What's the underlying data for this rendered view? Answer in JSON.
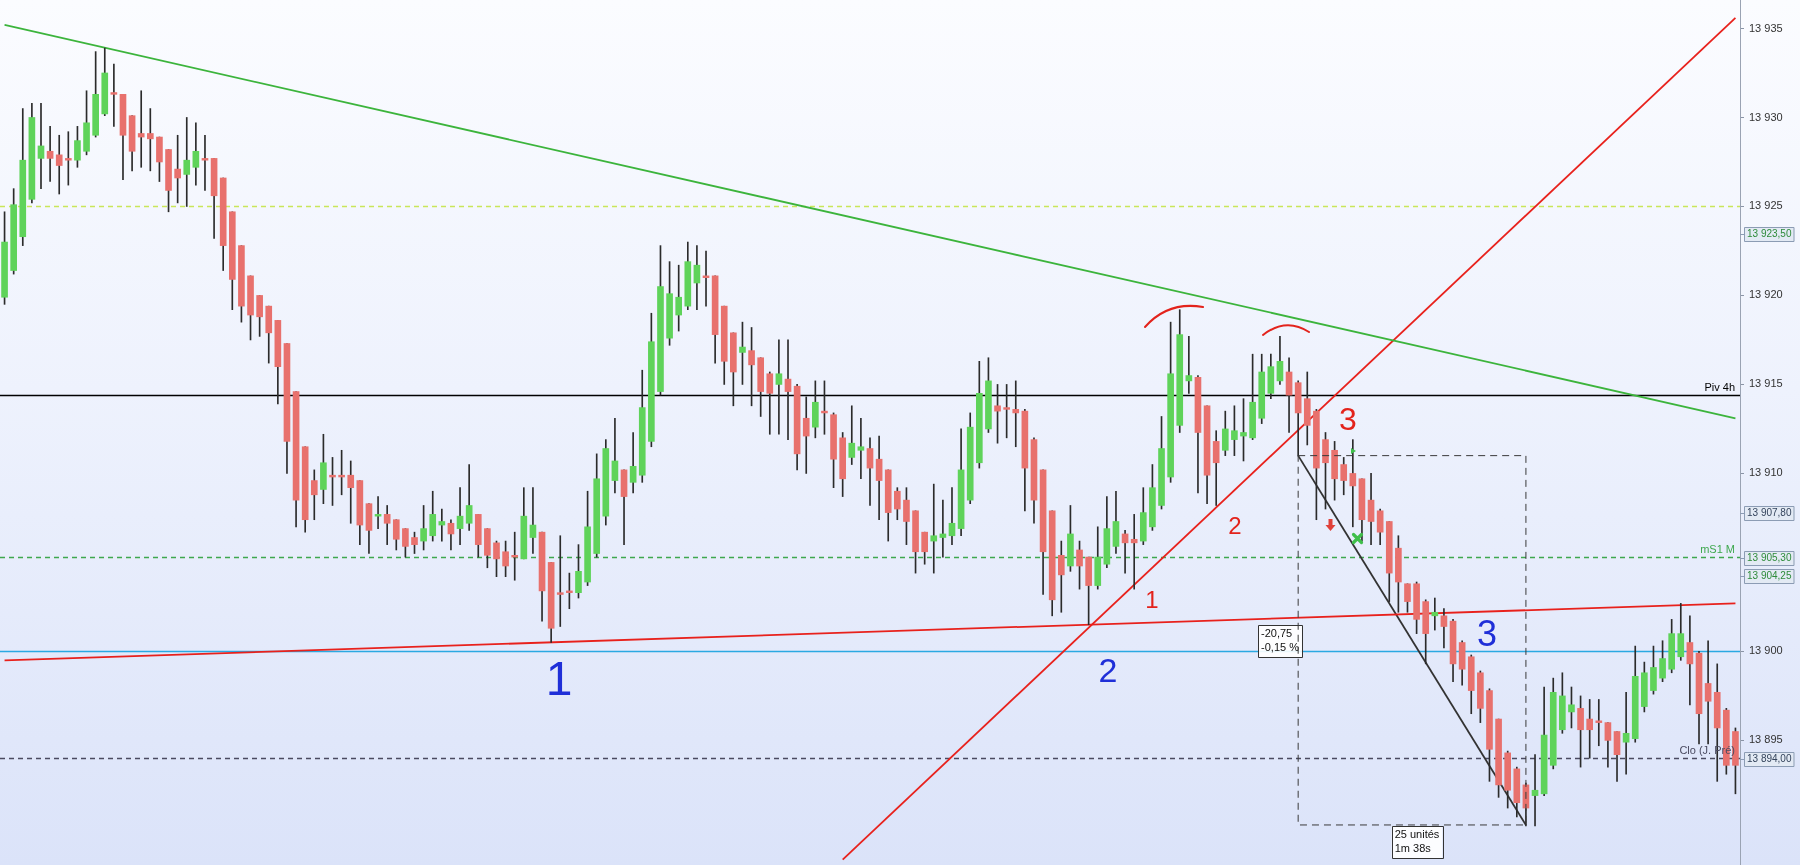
{
  "chart_data": {
    "type": "candlestick",
    "categories": [
      null,
      null,
      null,
      null,
      null,
      null,
      null,
      null,
      null,
      null,
      null,
      null,
      null,
      null,
      null,
      null,
      null,
      null,
      null,
      null,
      null,
      null,
      null,
      null,
      null,
      null,
      null,
      null,
      null,
      null,
      null,
      null,
      null,
      null,
      null,
      null,
      null,
      null,
      null,
      null,
      null,
      null,
      null,
      null,
      null,
      null,
      null,
      null,
      null,
      null,
      null,
      null,
      null,
      null,
      null,
      null,
      null,
      null,
      null,
      null,
      null,
      null,
      null,
      null,
      null,
      null,
      null,
      null,
      null,
      null,
      null,
      null,
      null,
      null,
      null,
      null,
      null,
      null,
      null,
      null,
      null,
      null,
      null,
      null,
      null,
      null,
      null,
      null,
      null,
      null,
      null,
      null,
      null,
      null,
      null,
      null,
      null,
      null,
      null,
      null,
      null,
      null,
      null,
      null,
      null,
      null,
      null,
      null,
      null,
      null,
      null,
      null,
      null,
      null,
      null,
      null,
      null,
      null,
      null,
      null,
      null,
      null,
      null,
      null,
      null,
      null,
      null,
      null,
      null,
      null,
      null,
      null,
      null,
      null,
      null,
      null,
      null,
      null,
      null,
      null,
      null,
      null,
      null,
      null,
      null,
      null,
      null,
      null,
      null,
      null,
      null,
      null,
      null,
      null,
      null,
      null,
      null,
      null,
      null,
      null,
      null,
      null,
      null,
      null,
      null,
      null,
      null,
      null,
      null,
      null,
      null,
      null,
      null,
      null,
      null,
      null,
      null,
      null,
      null,
      null,
      null,
      null,
      null,
      null,
      null,
      null,
      null,
      null,
      null,
      null,
      null
    ],
    "ohlc": [
      [
        13919.9,
        13924.7,
        13919.5,
        13923.0
      ],
      [
        13921.4,
        13926.0,
        13921.2,
        13925.1
      ],
      [
        13923.3,
        13930.5,
        13922.8,
        13927.6
      ],
      [
        13925.4,
        13930.8,
        13925.2,
        13930.0
      ],
      [
        13927.7,
        13930.8,
        13926.0,
        13928.4
      ],
      [
        13928.1,
        13929.5,
        13926.4,
        13927.7
      ],
      [
        13927.9,
        13929.0,
        13925.7,
        13927.3
      ],
      [
        13927.7,
        13929.2,
        13926.2,
        13927.6
      ],
      [
        13927.6,
        13929.5,
        13927.2,
        13928.7
      ],
      [
        13928.1,
        13931.5,
        13927.9,
        13929.7
      ],
      [
        13929.0,
        13933.7,
        13928.9,
        13931.3
      ],
      [
        13930.2,
        13933.9,
        13930.1,
        13932.5
      ],
      [
        13931.4,
        13933.0,
        13929.5,
        13931.3
      ],
      [
        13931.3,
        13931.3,
        13926.5,
        13929.0
      ],
      [
        13930.1,
        13930.1,
        13927.0,
        13928.1
      ],
      [
        13929.1,
        13931.5,
        13927.2,
        13928.9
      ],
      [
        13929.1,
        13930.5,
        13927.0,
        13928.8
      ],
      [
        13928.9,
        13928.9,
        13926.4,
        13927.5
      ],
      [
        13928.2,
        13928.2,
        13924.7,
        13925.9
      ],
      [
        13927.1,
        13929.0,
        13925.2,
        13926.6
      ],
      [
        13926.8,
        13930.0,
        13925.0,
        13927.6
      ],
      [
        13927.2,
        13929.7,
        13926.2,
        13928.1
      ],
      [
        13927.7,
        13929.0,
        13925.9,
        13927.6
      ],
      [
        13927.7,
        13927.7,
        13923.2,
        13925.6
      ],
      [
        13926.6,
        13926.6,
        13921.4,
        13922.8
      ],
      [
        13924.7,
        13924.7,
        13919.2,
        13920.9
      ],
      [
        13922.8,
        13922.8,
        13918.5,
        13919.4
      ],
      [
        13921.1,
        13921.1,
        13917.5,
        13918.9
      ],
      [
        13920.0,
        13920.0,
        13917.7,
        13918.8
      ],
      [
        13919.4,
        13919.4,
        13916.2,
        13917.9
      ],
      [
        13918.6,
        13918.6,
        13913.9,
        13916.0
      ],
      [
        13917.3,
        13917.3,
        13910.0,
        13911.8
      ],
      [
        13914.6,
        13914.6,
        13907.0,
        13908.5
      ],
      [
        13911.5,
        13911.5,
        13906.7,
        13907.4
      ],
      [
        13909.6,
        13910.2,
        13907.4,
        13908.8
      ],
      [
        13909.1,
        13912.2,
        13908.3,
        13910.6
      ],
      [
        13909.9,
        13910.9,
        13908.2,
        13909.8
      ],
      [
        13909.9,
        13911.3,
        13908.8,
        13909.8
      ],
      [
        13909.9,
        13910.7,
        13907.2,
        13909.2
      ],
      [
        13909.6,
        13909.6,
        13906.0,
        13907.1
      ],
      [
        13908.3,
        13908.3,
        13905.5,
        13906.8
      ],
      [
        13907.6,
        13908.7,
        13906.9,
        13907.7
      ],
      [
        13907.7,
        13908.2,
        13906.0,
        13907.2
      ],
      [
        13907.4,
        13907.4,
        13905.7,
        13906.3
      ],
      [
        13906.9,
        13906.9,
        13905.3,
        13905.9
      ],
      [
        13906.4,
        13906.7,
        13905.5,
        13906.0
      ],
      [
        13906.2,
        13908.2,
        13905.7,
        13906.9
      ],
      [
        13906.5,
        13909.0,
        13906.2,
        13907.7
      ],
      [
        13907.1,
        13908.0,
        13906.2,
        13907.3
      ],
      [
        13907.2,
        13907.4,
        13905.7,
        13906.6
      ],
      [
        13906.9,
        13909.2,
        13906.0,
        13907.6
      ],
      [
        13907.2,
        13910.5,
        13906.8,
        13908.2
      ],
      [
        13907.7,
        13907.7,
        13905.3,
        13906.0
      ],
      [
        13906.9,
        13906.9,
        13904.7,
        13905.4
      ],
      [
        13906.1,
        13906.2,
        13904.2,
        13905.2
      ],
      [
        13905.6,
        13906.2,
        13904.2,
        13904.8
      ],
      [
        13905.4,
        13906.7,
        13904.0,
        13905.3
      ],
      [
        13905.2,
        13909.2,
        13905.2,
        13907.6
      ],
      [
        13906.4,
        13909.2,
        13905.5,
        13907.1
      ],
      [
        13906.7,
        13906.7,
        13901.7,
        13903.4
      ],
      [
        13905.0,
        13905.0,
        13900.5,
        13901.3
      ],
      [
        13903.3,
        13906.5,
        13901.4,
        13903.2
      ],
      [
        13903.4,
        13904.4,
        13902.4,
        13903.3
      ],
      [
        13903.3,
        13906.0,
        13903.0,
        13904.5
      ],
      [
        13903.9,
        13909.0,
        13903.7,
        13907.0
      ],
      [
        13905.5,
        13911.1,
        13905.3,
        13909.7
      ],
      [
        13907.6,
        13911.9,
        13907.1,
        13911.4
      ],
      [
        13909.6,
        13913.1,
        13908.9,
        13910.7
      ],
      [
        13910.2,
        13910.2,
        13906.0,
        13908.7
      ],
      [
        13909.5,
        13912.3,
        13908.9,
        13910.4
      ],
      [
        13909.9,
        13915.8,
        13909.5,
        13913.7
      ],
      [
        13911.8,
        13919.0,
        13911.5,
        13917.4
      ],
      [
        13914.6,
        13922.8,
        13914.4,
        13920.5
      ],
      [
        13917.6,
        13921.9,
        13917.2,
        13920.1
      ],
      [
        13918.9,
        13921.7,
        13918.0,
        13919.9
      ],
      [
        13919.4,
        13923.0,
        13919.2,
        13921.9
      ],
      [
        13920.7,
        13922.8,
        13919.2,
        13921.7
      ],
      [
        13921.1,
        13922.5,
        13919.4,
        13921.0
      ],
      [
        13921.1,
        13921.1,
        13916.2,
        13917.8
      ],
      [
        13919.4,
        13919.4,
        13915.0,
        13916.3
      ],
      [
        13917.9,
        13917.9,
        13913.8,
        13915.7
      ],
      [
        13916.8,
        13918.5,
        13915.0,
        13917.1
      ],
      [
        13916.9,
        13918.2,
        13913.8,
        13916.1
      ],
      [
        13916.5,
        13916.5,
        13913.2,
        13914.6
      ],
      [
        13915.6,
        13915.7,
        13912.2,
        13914.5
      ],
      [
        13915.0,
        13917.5,
        13912.2,
        13915.6
      ],
      [
        13915.3,
        13917.5,
        13911.9,
        13914.6
      ],
      [
        13914.9,
        13915.0,
        13910.2,
        13911.1
      ],
      [
        13913.1,
        13914.3,
        13910.0,
        13912.1
      ],
      [
        13912.6,
        13915.2,
        13912.0,
        13914.0
      ],
      [
        13913.5,
        13915.2,
        13912.2,
        13913.4
      ],
      [
        13913.3,
        13913.4,
        13909.2,
        13910.8
      ],
      [
        13912.0,
        13912.3,
        13908.7,
        13909.7
      ],
      [
        13910.9,
        13913.8,
        13910.5,
        13911.7
      ],
      [
        13911.3,
        13913.1,
        13909.7,
        13911.5
      ],
      [
        13911.4,
        13912.0,
        13908.2,
        13910.3
      ],
      [
        13910.8,
        13912.1,
        13907.4,
        13909.6
      ],
      [
        13910.2,
        13910.2,
        13906.2,
        13907.8
      ],
      [
        13909.0,
        13909.2,
        13907.4,
        13908.0
      ],
      [
        13908.5,
        13909.2,
        13906.0,
        13907.3
      ],
      [
        13907.9,
        13907.9,
        13904.4,
        13905.6
      ],
      [
        13906.7,
        13906.7,
        13904.9,
        13905.6
      ],
      [
        13906.2,
        13909.4,
        13904.4,
        13906.5
      ],
      [
        13906.4,
        13908.5,
        13905.3,
        13906.6
      ],
      [
        13906.5,
        13909.2,
        13906.0,
        13907.2
      ],
      [
        13906.9,
        13912.5,
        13906.5,
        13910.2
      ],
      [
        13908.5,
        13913.4,
        13908.3,
        13912.6
      ],
      [
        13910.6,
        13916.3,
        13910.3,
        13914.5
      ],
      [
        13912.5,
        13916.5,
        13912.3,
        13915.2
      ],
      [
        13913.8,
        13915.0,
        13911.7,
        13913.5
      ],
      [
        13913.7,
        13915.0,
        13912.0,
        13913.6
      ],
      [
        13913.6,
        13915.2,
        13911.5,
        13913.4
      ],
      [
        13913.5,
        13913.6,
        13907.9,
        13910.3
      ],
      [
        13911.9,
        13912.0,
        13907.2,
        13908.5
      ],
      [
        13910.2,
        13910.2,
        13903.2,
        13905.6
      ],
      [
        13907.9,
        13907.9,
        13902.0,
        13902.9
      ],
      [
        13905.4,
        13906.2,
        13902.2,
        13904.3
      ],
      [
        13904.8,
        13908.2,
        13904.5,
        13906.6
      ],
      [
        13905.7,
        13906.2,
        13903.5,
        13904.8
      ],
      [
        13905.3,
        13905.3,
        13901.5,
        13903.7
      ],
      [
        13903.7,
        13907.0,
        13903.5,
        13905.3
      ],
      [
        13904.9,
        13908.7,
        13904.7,
        13906.9
      ],
      [
        13905.9,
        13909.0,
        13905.5,
        13907.3
      ],
      [
        13906.6,
        13906.8,
        13904.4,
        13906.1
      ],
      [
        13906.3,
        13907.7,
        13903.5,
        13906.1
      ],
      [
        13906.2,
        13909.2,
        13906.0,
        13907.8
      ],
      [
        13907.0,
        13910.5,
        13906.8,
        13909.2
      ],
      [
        13908.2,
        13913.2,
        13908.0,
        13911.4
      ],
      [
        13909.8,
        13918.5,
        13909.5,
        13915.6
      ],
      [
        13912.7,
        13919.2,
        13912.3,
        13917.8
      ],
      [
        13915.2,
        13917.7,
        13914.5,
        13915.5
      ],
      [
        13915.4,
        13915.5,
        13908.9,
        13912.3
      ],
      [
        13913.8,
        13913.8,
        13908.3,
        13909.9
      ],
      [
        13911.8,
        13912.4,
        13908.2,
        13910.6
      ],
      [
        13911.3,
        13913.5,
        13911.0,
        13912.5
      ],
      [
        13911.9,
        13913.8,
        13911.0,
        13912.4
      ],
      [
        13912.1,
        13914.2,
        13910.7,
        13912.3
      ],
      [
        13912.0,
        13916.7,
        13911.9,
        13914.0
      ],
      [
        13913.1,
        13916.7,
        13912.8,
        13915.7
      ],
      [
        13914.5,
        13916.7,
        13914.2,
        13916.0
      ],
      [
        13915.2,
        13917.7,
        13915.0,
        13916.3
      ],
      [
        13915.7,
        13916.5,
        13912.3,
        13914.4
      ],
      [
        13915.1,
        13915.2,
        13911.0,
        13913.4
      ],
      [
        13914.2,
        13915.7,
        13911.6,
        13912.7
      ],
      [
        13913.5,
        13913.6,
        13907.4,
        13910.3
      ],
      [
        13911.9,
        13912.3,
        13908.0,
        13910.6
      ],
      [
        13911.3,
        13911.8,
        13908.5,
        13909.7
      ],
      [
        13910.5,
        13910.9,
        13908.8,
        13909.6
      ],
      [
        13910.0,
        13911.9,
        13907.0,
        13909.3
      ],
      [
        13909.7,
        13909.7,
        13906.2,
        13907.4
      ],
      [
        13908.5,
        13910.0,
        13906.0,
        13907.3
      ],
      [
        13907.9,
        13908.0,
        13906.0,
        13906.7
      ],
      [
        13907.3,
        13907.3,
        13902.8,
        13904.4
      ],
      [
        13905.8,
        13906.5,
        13902.2,
        13903.9
      ],
      [
        13903.8,
        13903.8,
        13902.2,
        13902.8
      ],
      [
        13903.8,
        13903.9,
        13901.0,
        13901.8
      ],
      [
        13902.8,
        13902.9,
        13899.3,
        13901.0
      ],
      [
        13902.0,
        13903.0,
        13901.2,
        13902.2
      ],
      [
        13902.0,
        13902.4,
        13900.2,
        13901.4
      ],
      [
        13901.7,
        13901.8,
        13898.3,
        13899.3
      ],
      [
        13900.5,
        13900.6,
        13898.1,
        13899.0
      ],
      [
        13899.7,
        13899.8,
        13896.5,
        13897.8
      ],
      [
        13898.8,
        13898.9,
        13896.0,
        13896.8
      ],
      [
        13897.8,
        13897.9,
        13892.7,
        13894.5
      ],
      [
        13896.2,
        13896.2,
        13891.8,
        13892.5
      ],
      [
        13894.3,
        13894.4,
        13891.2,
        13892.2
      ],
      [
        13893.4,
        13893.5,
        13890.7,
        13891.5
      ],
      [
        13892.5,
        13892.6,
        13890.2,
        13891.2
      ],
      [
        13891.9,
        13894.2,
        13890.2,
        13892.2
      ],
      [
        13892.0,
        13898.0,
        13891.9,
        13895.3
      ],
      [
        13893.6,
        13898.5,
        13893.4,
        13897.7
      ],
      [
        13895.6,
        13898.8,
        13895.4,
        13897.5
      ],
      [
        13896.6,
        13898.0,
        13895.7,
        13897.0
      ],
      [
        13896.8,
        13897.5,
        13893.5,
        13895.6
      ],
      [
        13896.2,
        13897.3,
        13894.0,
        13895.6
      ],
      [
        13896.1,
        13897.3,
        13894.7,
        13896.0
      ],
      [
        13896.0,
        13896.0,
        13893.5,
        13895.0
      ],
      [
        13895.5,
        13895.5,
        13892.7,
        13894.2
      ],
      [
        13894.9,
        13897.7,
        13893.1,
        13895.4
      ],
      [
        13895.1,
        13900.3,
        13894.9,
        13898.6
      ],
      [
        13896.9,
        13899.4,
        13896.6,
        13898.8
      ],
      [
        13897.8,
        13900.3,
        13897.6,
        13899.1
      ],
      [
        13898.5,
        13900.6,
        13898.3,
        13899.6
      ],
      [
        13899.0,
        13901.8,
        13898.8,
        13901.0
      ],
      [
        13899.7,
        13902.7,
        13899.5,
        13901.0
      ],
      [
        13900.5,
        13902.0,
        13897.0,
        13899.3
      ],
      [
        13899.9,
        13900.0,
        13894.8,
        13896.5
      ],
      [
        13898.2,
        13900.6,
        13894.8,
        13897.2
      ],
      [
        13897.7,
        13899.3,
        13892.7,
        13895.7
      ],
      [
        13896.7,
        13896.8,
        13893.1,
        13893.6
      ],
      [
        13895.5,
        13895.7,
        13892.0,
        13893.6
      ]
    ],
    "colors": [
      "#5fd35a",
      "#5fd35a",
      "#5fd35a",
      "#5fd35a",
      "#5fd35a",
      "#e8716d",
      "#e8716d",
      "#e8716d",
      "#5fd35a",
      "#5fd35a",
      "#5fd35a",
      "#5fd35a",
      "#e8716d",
      "#e8716d",
      "#e8716d",
      "#e8716d",
      "#e8716d",
      "#e8716d",
      "#e8716d",
      "#e8716d",
      "#5fd35a",
      "#5fd35a",
      "#e8716d",
      "#e8716d",
      "#e8716d",
      "#e8716d",
      "#e8716d",
      "#e8716d",
      "#e8716d",
      "#e8716d",
      "#e8716d",
      "#e8716d",
      "#e8716d",
      "#e8716d",
      "#e8716d",
      "#5fd35a",
      "#e8716d",
      "#e8716d",
      "#e8716d",
      "#e8716d",
      "#e8716d",
      "#5fd35a",
      "#e8716d",
      "#e8716d",
      "#e8716d",
      "#e8716d",
      "#5fd35a",
      "#5fd35a",
      "#5fd35a",
      "#e8716d",
      "#5fd35a",
      "#5fd35a",
      "#e8716d",
      "#e8716d",
      "#e8716d",
      "#e8716d",
      "#e8716d",
      "#5fd35a",
      "#5fd35a",
      "#e8716d",
      "#e8716d",
      "#e8716d",
      "#e8716d",
      "#5fd35a",
      "#5fd35a",
      "#5fd35a",
      "#5fd35a",
      "#5fd35a",
      "#e8716d",
      "#5fd35a",
      "#5fd35a",
      "#5fd35a",
      "#5fd35a",
      "#5fd35a",
      "#5fd35a",
      "#5fd35a",
      "#5fd35a",
      "#e8716d",
      "#e8716d",
      "#e8716d",
      "#e8716d",
      "#5fd35a",
      "#e8716d",
      "#e8716d",
      "#e8716d",
      "#5fd35a",
      "#e8716d",
      "#e8716d",
      "#e8716d",
      "#5fd35a",
      "#e8716d",
      "#e8716d",
      "#e8716d",
      "#5fd35a",
      "#5fd35a",
      "#e8716d",
      "#e8716d",
      "#e8716d",
      "#e8716d",
      "#e8716d",
      "#e8716d",
      "#e8716d",
      "#5fd35a",
      "#5fd35a",
      "#5fd35a",
      "#5fd35a",
      "#5fd35a",
      "#5fd35a",
      "#5fd35a",
      "#e8716d",
      "#e8716d",
      "#e8716d",
      "#e8716d",
      "#e8716d",
      "#e8716d",
      "#e8716d",
      "#e8716d",
      "#5fd35a",
      "#e8716d",
      "#e8716d",
      "#5fd35a",
      "#5fd35a",
      "#5fd35a",
      "#e8716d",
      "#e8716d",
      "#5fd35a",
      "#5fd35a",
      "#5fd35a",
      "#5fd35a",
      "#5fd35a",
      "#5fd35a",
      "#e8716d",
      "#e8716d",
      "#e8716d",
      "#5fd35a",
      "#5fd35a",
      "#5fd35a",
      "#5fd35a",
      "#5fd35a",
      "#5fd35a",
      "#5fd35a",
      "#e8716d",
      "#e8716d",
      "#e8716d",
      "#e8716d",
      "#e8716d",
      "#e8716d",
      "#e8716d",
      "#e8716d",
      "#e8716d",
      "#e8716d",
      "#e8716d",
      "#e8716d",
      "#e8716d",
      "#e8716d",
      "#e8716d",
      "#e8716d",
      "#5fd35a",
      "#e8716d",
      "#e8716d",
      "#e8716d",
      "#e8716d",
      "#e8716d",
      "#e8716d",
      "#e8716d",
      "#e8716d",
      "#e8716d",
      "#e8716d",
      "#5fd35a",
      "#5fd35a",
      "#5fd35a",
      "#5fd35a",
      "#5fd35a",
      "#e8716d",
      "#e8716d",
      "#e8716d",
      "#e8716d",
      "#e8716d",
      "#5fd35a",
      "#5fd35a",
      "#5fd35a",
      "#5fd35a",
      "#5fd35a",
      "#5fd35a",
      "#5fd35a",
      "#e8716d",
      "#e8716d",
      "#e8716d",
      "#e8716d",
      "#e8716d",
      "#e8716d"
    ],
    "series": [
      {
        "type": "line",
        "color": "#3cb43c",
        "values": [
          13935.2,
          null,
          null,
          null,
          null,
          null,
          null,
          null,
          null,
          null,
          null,
          null,
          null,
          null,
          null,
          null,
          null,
          null,
          null,
          null,
          null,
          null,
          null,
          null,
          null,
          null,
          null,
          null,
          null,
          null,
          null,
          null,
          null,
          null,
          null,
          null,
          null,
          null,
          null,
          null,
          null,
          null,
          null,
          null,
          null,
          null,
          null,
          null,
          null,
          null,
          null,
          null,
          null,
          null,
          null,
          null,
          null,
          null,
          null,
          null,
          null,
          null,
          null,
          null,
          null,
          null,
          null,
          null,
          null,
          null,
          null,
          null,
          null,
          null,
          null,
          null,
          null,
          null,
          null,
          null,
          null,
          null,
          null,
          null,
          null,
          null,
          null,
          null,
          null,
          null,
          null,
          null,
          null,
          null,
          null,
          null,
          null,
          null,
          null,
          null,
          null,
          null,
          null,
          null,
          null,
          null,
          null,
          null,
          null,
          null,
          null,
          null,
          null,
          null,
          null,
          null,
          null,
          null,
          null,
          null,
          null,
          null,
          null,
          null,
          null,
          null,
          null,
          null,
          null,
          null,
          null,
          null,
          null,
          null,
          null,
          null,
          null,
          null,
          null,
          null,
          null,
          null,
          null,
          null,
          null,
          null,
          null,
          null,
          null,
          null,
          null,
          null,
          null,
          null,
          null,
          null,
          null,
          null,
          null,
          null,
          null,
          null,
          null,
          null,
          null,
          null,
          null,
          null,
          null,
          null,
          null,
          null,
          null,
          null,
          null,
          null,
          null,
          null,
          null,
          null,
          null,
          null,
          null,
          null,
          null,
          null,
          null,
          null,
          null,
          null,
          13913.1
        ]
      },
      {
        "type": "line",
        "color": "#e8211c",
        "values": [
          null,
          null,
          null,
          null,
          null,
          null,
          null,
          null,
          null,
          null,
          null,
          null,
          null,
          null,
          null,
          null,
          null,
          null,
          null,
          null,
          null,
          null,
          null,
          null,
          null,
          null,
          null,
          null,
          null,
          null,
          null,
          null,
          null,
          null,
          null,
          null,
          null,
          null,
          null,
          null,
          null,
          null,
          null,
          null,
          null,
          null,
          null,
          null,
          null,
          null,
          null,
          null,
          null,
          null,
          null,
          null,
          null,
          null,
          null,
          null,
          null,
          null,
          null,
          null,
          null,
          null,
          null,
          null,
          null,
          null,
          null,
          null,
          null,
          null,
          null,
          null,
          null,
          null,
          null,
          null,
          null,
          null,
          null,
          null,
          null,
          null,
          null,
          null,
          null,
          null,
          null,
          null,
          13888.3,
          null,
          null,
          null,
          null,
          null,
          null,
          null,
          null,
          null,
          null,
          null,
          null,
          null,
          null,
          null,
          null,
          null,
          null,
          null,
          null,
          null,
          null,
          null,
          null,
          null,
          null,
          null,
          null,
          null,
          null,
          null,
          null,
          null,
          null,
          null,
          null,
          null,
          null,
          null,
          null,
          null,
          null,
          null,
          null,
          null,
          null,
          null,
          null,
          null,
          null,
          null,
          null,
          null,
          null,
          null,
          null,
          null,
          null,
          null,
          null,
          null,
          null,
          null,
          null,
          null,
          null,
          null,
          null,
          null,
          null,
          null,
          null,
          null,
          null,
          null,
          null,
          null,
          null,
          null,
          null,
          null,
          null,
          null,
          null,
          null,
          null,
          null,
          null,
          null,
          null,
          null,
          null,
          null,
          null,
          null,
          null,
          null,
          13935.6
        ]
      },
      {
        "type": "line",
        "color": "#e8211c",
        "values": [
          13899.5,
          null,
          null,
          null,
          null,
          null,
          null,
          null,
          null,
          null,
          null,
          null,
          null,
          null,
          null,
          null,
          null,
          null,
          null,
          null,
          null,
          null,
          null,
          null,
          null,
          null,
          null,
          null,
          null,
          null,
          null,
          null,
          null,
          null,
          null,
          null,
          null,
          null,
          null,
          null,
          null,
          null,
          null,
          null,
          null,
          null,
          null,
          null,
          null,
          null,
          null,
          null,
          null,
          null,
          null,
          null,
          null,
          null,
          null,
          null,
          null,
          null,
          null,
          null,
          null,
          null,
          null,
          null,
          null,
          null,
          null,
          null,
          null,
          null,
          null,
          null,
          null,
          null,
          null,
          null,
          null,
          null,
          null,
          null,
          null,
          null,
          null,
          null,
          null,
          null,
          null,
          null,
          null,
          null,
          null,
          null,
          null,
          null,
          null,
          null,
          null,
          null,
          null,
          null,
          null,
          null,
          null,
          null,
          null,
          null,
          null,
          null,
          null,
          null,
          null,
          null,
          null,
          null,
          null,
          null,
          null,
          null,
          null,
          null,
          null,
          null,
          null,
          null,
          null,
          null,
          null,
          null,
          null,
          null,
          null,
          null,
          null,
          null,
          null,
          null,
          null,
          null,
          null,
          null,
          null,
          null,
          null,
          null,
          null,
          null,
          null,
          null,
          null,
          null,
          null,
          null,
          null,
          null,
          null,
          null,
          null,
          null,
          null,
          null,
          null,
          null,
          null,
          null,
          null,
          null,
          null,
          null,
          null,
          null,
          null,
          null,
          null,
          null,
          null,
          null,
          null,
          null,
          null,
          null,
          null,
          null,
          null,
          null,
          null,
          null,
          13902.7
        ]
      },
      {
        "type": "line",
        "color": "#333333",
        "values": [
          null,
          null,
          null,
          null,
          null,
          null,
          null,
          null,
          null,
          null,
          null,
          null,
          null,
          null,
          null,
          null,
          null,
          null,
          null,
          null,
          null,
          null,
          null,
          null,
          null,
          null,
          null,
          null,
          null,
          null,
          null,
          null,
          null,
          null,
          null,
          null,
          null,
          null,
          null,
          null,
          null,
          null,
          null,
          null,
          null,
          null,
          null,
          null,
          null,
          null,
          null,
          null,
          null,
          null,
          null,
          null,
          null,
          null,
          null,
          null,
          null,
          null,
          null,
          null,
          null,
          null,
          null,
          null,
          null,
          null,
          null,
          null,
          null,
          null,
          null,
          null,
          null,
          null,
          null,
          null,
          null,
          null,
          null,
          null,
          null,
          null,
          null,
          null,
          null,
          null,
          null,
          null,
          null,
          null,
          null,
          null,
          null,
          null,
          null,
          null,
          null,
          null,
          null,
          null,
          null,
          null,
          null,
          null,
          null,
          null,
          null,
          null,
          null,
          null,
          null,
          null,
          null,
          null,
          null,
          null,
          null,
          null,
          null,
          null,
          null,
          null,
          null,
          null,
          null,
          null,
          null,
          null,
          null,
          null,
          null,
          null,
          null,
          null,
          null,
          null,
          null,
          null,
          13911.0,
          null,
          null,
          null,
          null,
          null,
          null,
          null,
          null,
          null,
          null,
          null,
          null,
          null,
          null,
          null,
          null,
          null,
          null,
          null,
          null,
          null,
          null,
          null,
          null,
          13890.25,
          null,
          null,
          null,
          null,
          null,
          null,
          null,
          null,
          null,
          null,
          null,
          null,
          null,
          null,
          null,
          null,
          null,
          null,
          null,
          null,
          null,
          null,
          null
        ]
      }
    ],
    "ylim": [
      13888.0,
      13936.6
    ],
    "yticks": [
      {
        "value": 13895,
        "label": "13 895"
      },
      {
        "value": 13900,
        "label": "13 900"
      },
      {
        "value": 13910,
        "label": "13 910"
      },
      {
        "value": 13915,
        "label": "13 915"
      },
      {
        "value": 13920,
        "label": "13 920"
      },
      {
        "value": 13925,
        "label": "13 925"
      },
      {
        "value": 13930,
        "label": "13 930"
      },
      {
        "value": 13935,
        "label": "13 935"
      }
    ],
    "ref_lines": [
      {
        "axis": "y",
        "value": 13925,
        "color": "#c9e65a",
        "line_style": "dashed"
      },
      {
        "axis": "y",
        "value": 13914.4,
        "label": "Piv 4h",
        "color": "#000000"
      },
      {
        "axis": "y",
        "value": 13905.3,
        "label": "mS1 M",
        "color": "#3ea84e",
        "line_style": "dashed"
      },
      {
        "axis": "y",
        "value": 13900,
        "color": "#2aa9e2"
      },
      {
        "axis": "y",
        "value": 13894,
        "label": "Clo (J. Pré)",
        "color": "#4a4a60",
        "line_style": "dashed"
      }
    ],
    "annotations": [
      "1",
      "2",
      "3",
      "1",
      "2",
      "3",
      "-20,75\n-0,15 %",
      "25 unités\n1m 38s",
      "13 923,50",
      "13 907,80",
      "13 905,30",
      "13 904,25",
      "13 894,00"
    ],
    "grid": false
  }
}
